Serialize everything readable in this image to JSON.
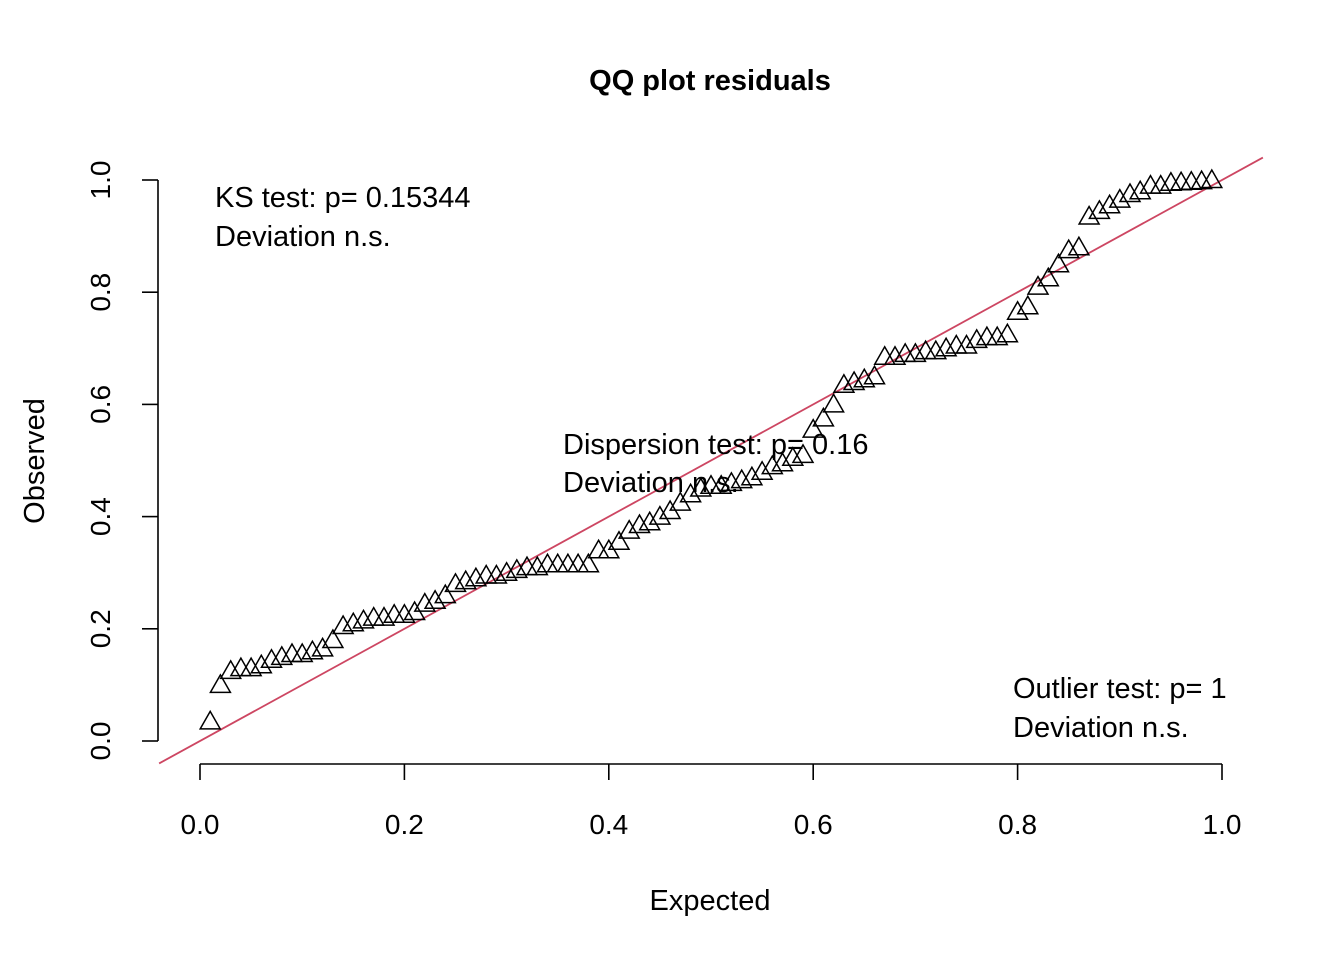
{
  "chart_data": {
    "type": "scatter",
    "title": "QQ plot residuals",
    "xlabel": "Expected",
    "ylabel": "Observed",
    "xlim": [
      0,
      1
    ],
    "ylim": [
      0,
      1
    ],
    "x_ticks": [
      "0.0",
      "0.2",
      "0.4",
      "0.6",
      "0.8",
      "1.0"
    ],
    "y_ticks": [
      "0.0",
      "0.2",
      "0.4",
      "0.6",
      "0.8",
      "1.0"
    ],
    "marker": "triangle-open",
    "reference_line": {
      "slope": 1,
      "intercept": 0,
      "color": "#cd4662"
    },
    "annotations": {
      "ks_test": "KS test: p= 0.15344",
      "ks_deviation": "Deviation  n.s.",
      "dispersion_test": "Dispersion test: p= 0.16",
      "dispersion_deviation": "Deviation  n.s.",
      "outlier_test": "Outlier test: p= 1",
      "outlier_deviation": "Deviation  n.s."
    },
    "points": {
      "expected": [
        0.01,
        0.02,
        0.03,
        0.04,
        0.05,
        0.06,
        0.07,
        0.08,
        0.09,
        0.1,
        0.11,
        0.12,
        0.13,
        0.14,
        0.15,
        0.16,
        0.17,
        0.18,
        0.19,
        0.2,
        0.21,
        0.22,
        0.23,
        0.24,
        0.25,
        0.26,
        0.27,
        0.28,
        0.29,
        0.3,
        0.31,
        0.32,
        0.33,
        0.34,
        0.35,
        0.36,
        0.37,
        0.38,
        0.39,
        0.4,
        0.41,
        0.42,
        0.43,
        0.44,
        0.45,
        0.46,
        0.47,
        0.48,
        0.49,
        0.5,
        0.51,
        0.52,
        0.53,
        0.54,
        0.55,
        0.56,
        0.57,
        0.58,
        0.59,
        0.6,
        0.61,
        0.62,
        0.63,
        0.64,
        0.65,
        0.66,
        0.67,
        0.68,
        0.69,
        0.7,
        0.71,
        0.72,
        0.73,
        0.74,
        0.75,
        0.76,
        0.77,
        0.78,
        0.79,
        0.8,
        0.81,
        0.82,
        0.83,
        0.84,
        0.85,
        0.86,
        0.87,
        0.88,
        0.89,
        0.9,
        0.91,
        0.92,
        0.93,
        0.94,
        0.95,
        0.96,
        0.97,
        0.98,
        0.99
      ],
      "observed": [
        0.035,
        0.1,
        0.125,
        0.13,
        0.13,
        0.135,
        0.145,
        0.15,
        0.155,
        0.155,
        0.16,
        0.165,
        0.18,
        0.205,
        0.21,
        0.215,
        0.22,
        0.22,
        0.225,
        0.225,
        0.23,
        0.245,
        0.25,
        0.26,
        0.28,
        0.285,
        0.29,
        0.295,
        0.295,
        0.3,
        0.305,
        0.31,
        0.31,
        0.315,
        0.315,
        0.315,
        0.315,
        0.315,
        0.34,
        0.34,
        0.355,
        0.375,
        0.385,
        0.39,
        0.4,
        0.41,
        0.425,
        0.44,
        0.45,
        0.455,
        0.455,
        0.46,
        0.465,
        0.47,
        0.48,
        0.49,
        0.495,
        0.505,
        0.51,
        0.555,
        0.575,
        0.6,
        0.635,
        0.64,
        0.645,
        0.65,
        0.685,
        0.685,
        0.69,
        0.69,
        0.695,
        0.695,
        0.7,
        0.705,
        0.705,
        0.715,
        0.72,
        0.72,
        0.725,
        0.765,
        0.775,
        0.81,
        0.825,
        0.85,
        0.875,
        0.88,
        0.935,
        0.945,
        0.955,
        0.965,
        0.975,
        0.98,
        0.99,
        0.99,
        0.995,
        0.996,
        0.997,
        0.998,
        1.0
      ]
    }
  }
}
